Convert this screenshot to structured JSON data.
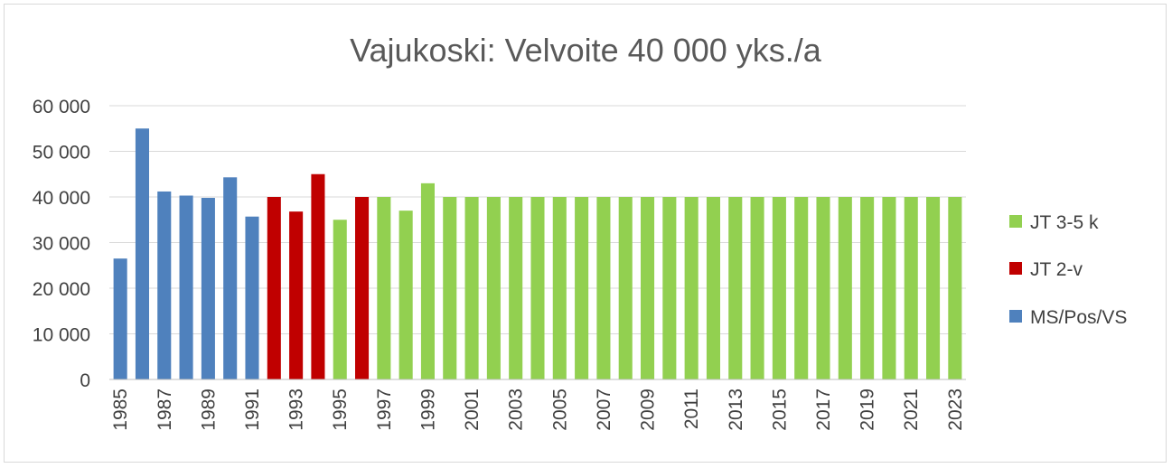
{
  "chart_data": {
    "type": "bar",
    "title": "Vajukoski: Velvoite 40 000 yks./a",
    "xlabel": "",
    "ylabel": "",
    "ylim": [
      0,
      60000
    ],
    "yticks": [
      0,
      10000,
      20000,
      30000,
      40000,
      50000,
      60000
    ],
    "ytick_labels": [
      "0",
      "10 000",
      "20 000",
      "30 000",
      "40 000",
      "50 000",
      "60 000"
    ],
    "grid": true,
    "legend_position": "right",
    "categories": [
      "1985",
      "1986",
      "1987",
      "1988",
      "1989",
      "1990",
      "1991",
      "1992",
      "1993",
      "1994",
      "1995",
      "1996",
      "1997",
      "1998",
      "1999",
      "2000",
      "2001",
      "2002",
      "2003",
      "2004",
      "2005",
      "2006",
      "2007",
      "2008",
      "2009",
      "2010",
      "2011",
      "2012",
      "2013",
      "2014",
      "2015",
      "2016",
      "2017",
      "2018",
      "2019",
      "2020",
      "2021",
      "2022",
      "2023"
    ],
    "xtick_labels": [
      "1985",
      "1987",
      "1989",
      "1991",
      "1993",
      "1995",
      "1997",
      "1999",
      "2001",
      "2003",
      "2005",
      "2007",
      "2009",
      "2011",
      "2013",
      "2015",
      "2017",
      "2019",
      "2021",
      "2023"
    ],
    "values": [
      26500,
      55000,
      41200,
      40300,
      39800,
      44300,
      35700,
      40000,
      36800,
      45000,
      35000,
      40000,
      40000,
      37000,
      43000,
      40000,
      40000,
      40000,
      40000,
      40000,
      40000,
      40000,
      40000,
      40000,
      40000,
      40000,
      40000,
      40000,
      40000,
      40000,
      40000,
      40000,
      40000,
      40000,
      40000,
      40000,
      40000,
      40000,
      40000
    ],
    "series_index": [
      2,
      2,
      2,
      2,
      2,
      2,
      2,
      1,
      1,
      1,
      0,
      1,
      0,
      0,
      0,
      0,
      0,
      0,
      0,
      0,
      0,
      0,
      0,
      0,
      0,
      0,
      0,
      0,
      0,
      0,
      0,
      0,
      0,
      0,
      0,
      0,
      0,
      0,
      0
    ],
    "series": [
      {
        "name": "JT 3-5 k",
        "color": "#92d050"
      },
      {
        "name": "JT 2-v",
        "color": "#c00000"
      },
      {
        "name": "MS/Pos/VS",
        "color": "#4f81bd"
      }
    ]
  }
}
